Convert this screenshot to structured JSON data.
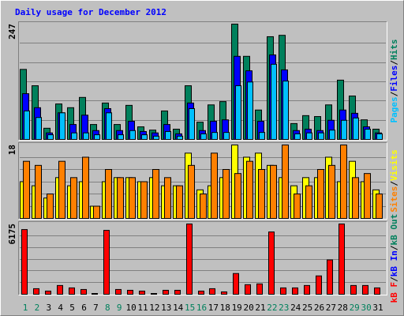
{
  "chart_data": [
    {
      "type": "bar",
      "title": "Daily usage for December 2012",
      "ylim": [
        0,
        247
      ],
      "yticks": [
        247
      ],
      "grid": true,
      "legend_separator": "/",
      "series": [
        {
          "name": "Pages",
          "color": "#00c0ff",
          "values": [
            61,
            47,
            10,
            57,
            14,
            14,
            10,
            57,
            10,
            19,
            10,
            7,
            17,
            7,
            66,
            12,
            15,
            15,
            115,
            123,
            15,
            161,
            125,
            12,
            14,
            14,
            20,
            41,
            46,
            22,
            12
          ]
        },
        {
          "name": "Files",
          "color": "#0000ff",
          "values": [
            98,
            68,
            14,
            57,
            32,
            52,
            19,
            66,
            19,
            39,
            17,
            14,
            32,
            12,
            78,
            19,
            39,
            42,
            178,
            147,
            39,
            181,
            149,
            19,
            22,
            19,
            41,
            63,
            56,
            27,
            14
          ]
        },
        {
          "name": "Hits",
          "color": "#00805c",
          "values": [
            150,
            115,
            24,
            76,
            68,
            90,
            32,
            78,
            32,
            73,
            27,
            20,
            61,
            22,
            115,
            37,
            74,
            81,
            247,
            178,
            63,
            220,
            223,
            34,
            51,
            49,
            74,
            127,
            93,
            42,
            22
          ]
        }
      ]
    },
    {
      "type": "bar",
      "ylim": [
        0,
        18
      ],
      "yticks": [
        18
      ],
      "grid": true,
      "legend_separator": "/",
      "series": [
        {
          "name": "Sites",
          "color": "#ff8000",
          "values": [
            14,
            13,
            6,
            14,
            10,
            15,
            3,
            12,
            10,
            10,
            9,
            12,
            10,
            8,
            13,
            6,
            16,
            12,
            11,
            14,
            12,
            13,
            18,
            6,
            8,
            12,
            13,
            18,
            10,
            11,
            6
          ]
        },
        {
          "name": "Visits",
          "color": "#ffff00",
          "values": [
            9,
            8,
            5,
            10,
            8,
            9,
            3,
            9,
            10,
            10,
            9,
            10,
            8,
            8,
            16,
            7,
            8,
            10,
            18,
            15,
            16,
            13,
            10,
            8,
            10,
            10,
            15,
            9,
            14,
            9,
            7
          ]
        }
      ]
    },
    {
      "type": "bar",
      "ylim": [
        0,
        6175
      ],
      "yticks": [
        6175
      ],
      "grid": true,
      "legend_separator": "/",
      "categories": [
        "1",
        "2",
        "3",
        "4",
        "5",
        "6",
        "7",
        "8",
        "9",
        "10",
        "11",
        "12",
        "13",
        "14",
        "15",
        "16",
        "17",
        "18",
        "19",
        "20",
        "21",
        "22",
        "23",
        "24",
        "25",
        "26",
        "27",
        "28",
        "29",
        "30",
        "31"
      ],
      "category_colors": [
        "#00805c",
        "#00805c",
        "#000000",
        "#000000",
        "#000000",
        "#000000",
        "#000000",
        "#00805c",
        "#00805c",
        "#000000",
        "#000000",
        "#000000",
        "#000000",
        "#000000",
        "#00805c",
        "#00805c",
        "#000000",
        "#000000",
        "#000000",
        "#000000",
        "#000000",
        "#00805c",
        "#00805c",
        "#000000",
        "#000000",
        "#000000",
        "#000000",
        "#000000",
        "#00805c",
        "#00805c",
        "#000000"
      ],
      "series": [
        {
          "name": "kB F",
          "color": "#ff0000",
          "values": [
            5684,
            491,
            281,
            772,
            561,
            421,
            70,
            5614,
            421,
            351,
            281,
            70,
            351,
            351,
            6175,
            281,
            491,
            211,
            1824,
            842,
            912,
            5473,
            561,
            561,
            772,
            1614,
            3017,
            6175,
            772,
            772,
            561
          ]
        }
      ],
      "legend": [
        {
          "name": "kB F",
          "color": "#ff0000"
        },
        {
          "name": "kB In",
          "color": "#0000ff"
        },
        {
          "name": "kB Out",
          "color": "#00805c"
        }
      ]
    }
  ]
}
